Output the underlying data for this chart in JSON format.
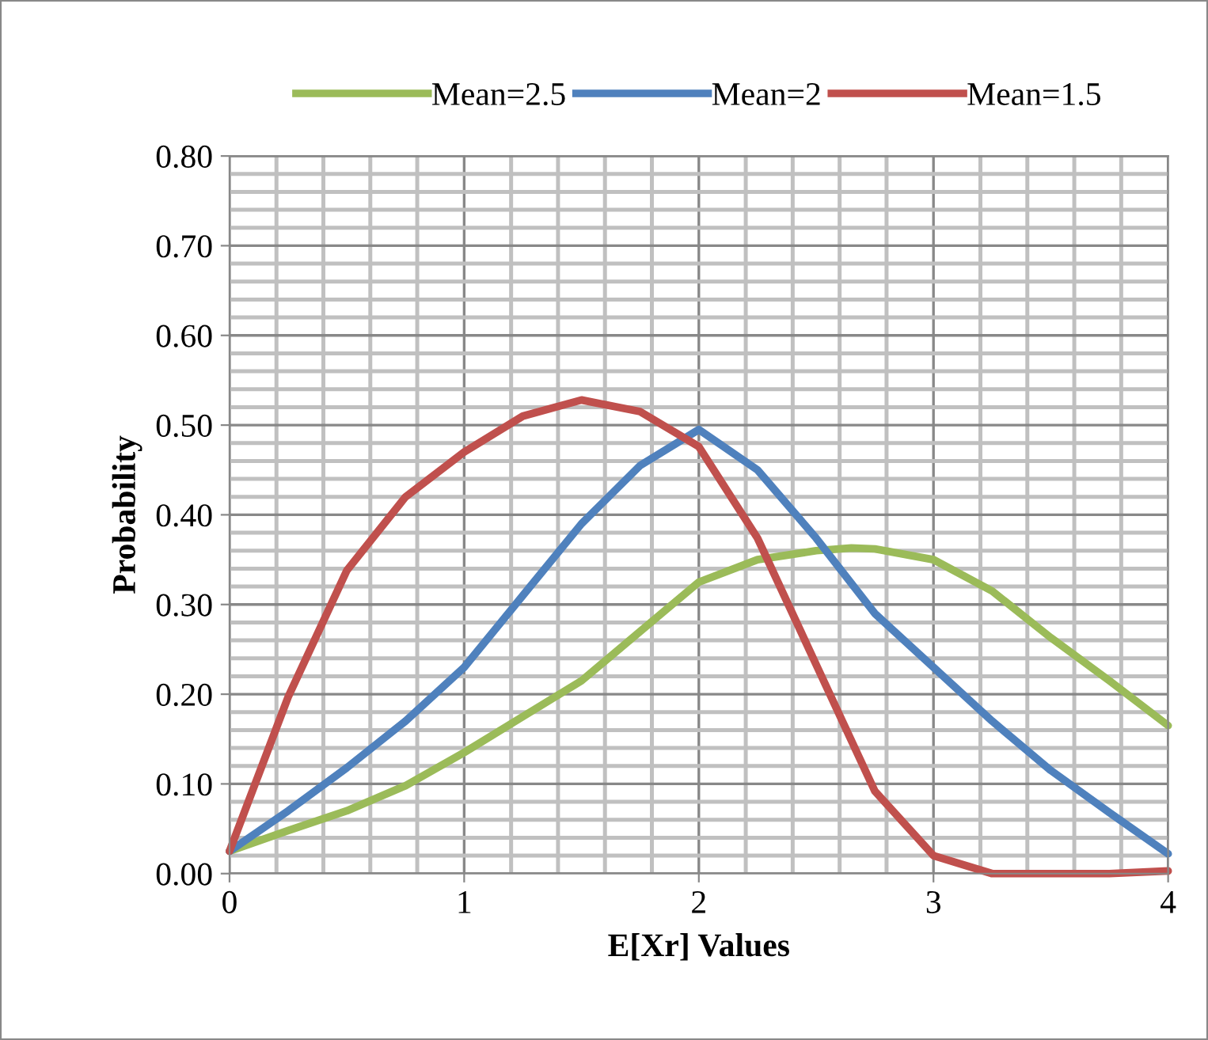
{
  "chart_data": {
    "type": "line",
    "xlabel": "E[Xr] Values",
    "ylabel": "Probability",
    "xlim": [
      0,
      4
    ],
    "ylim": [
      0,
      0.8
    ],
    "xticks": [
      {
        "value": 0,
        "label": "0"
      },
      {
        "value": 0.2,
        "label": null
      },
      {
        "value": 0.4,
        "label": null
      },
      {
        "value": 0.6,
        "label": null
      },
      {
        "value": 0.8,
        "label": null
      },
      {
        "value": 1,
        "label": "1"
      },
      {
        "value": 1.2,
        "label": null
      },
      {
        "value": 1.4,
        "label": null
      },
      {
        "value": 1.6,
        "label": null
      },
      {
        "value": 1.8,
        "label": null
      },
      {
        "value": 2,
        "label": "2"
      },
      {
        "value": 2.2,
        "label": null
      },
      {
        "value": 2.4,
        "label": null
      },
      {
        "value": 2.6,
        "label": null
      },
      {
        "value": 2.8,
        "label": null
      },
      {
        "value": 3,
        "label": "3"
      },
      {
        "value": 3.2,
        "label": null
      },
      {
        "value": 3.4,
        "label": null
      },
      {
        "value": 3.6,
        "label": null
      },
      {
        "value": 3.8,
        "label": null
      },
      {
        "value": 4,
        "label": "4"
      }
    ],
    "yticks": [
      {
        "value": 0,
        "label": "0.00"
      },
      {
        "value": 0.02,
        "label": null
      },
      {
        "value": 0.04,
        "label": null
      },
      {
        "value": 0.06,
        "label": null
      },
      {
        "value": 0.08,
        "label": null
      },
      {
        "value": 0.1,
        "label": "0.10"
      },
      {
        "value": 0.12,
        "label": null
      },
      {
        "value": 0.14,
        "label": null
      },
      {
        "value": 0.16,
        "label": null
      },
      {
        "value": 0.18,
        "label": null
      },
      {
        "value": 0.2,
        "label": "0.20"
      },
      {
        "value": 0.22,
        "label": null
      },
      {
        "value": 0.24,
        "label": null
      },
      {
        "value": 0.26,
        "label": null
      },
      {
        "value": 0.28,
        "label": null
      },
      {
        "value": 0.3,
        "label": "0.30"
      },
      {
        "value": 0.32,
        "label": null
      },
      {
        "value": 0.34,
        "label": null
      },
      {
        "value": 0.36,
        "label": null
      },
      {
        "value": 0.38,
        "label": null
      },
      {
        "value": 0.4,
        "label": "0.40"
      },
      {
        "value": 0.42,
        "label": null
      },
      {
        "value": 0.44,
        "label": null
      },
      {
        "value": 0.46,
        "label": null
      },
      {
        "value": 0.48,
        "label": null
      },
      {
        "value": 0.5,
        "label": "0.50"
      },
      {
        "value": 0.52,
        "label": null
      },
      {
        "value": 0.54,
        "label": null
      },
      {
        "value": 0.56,
        "label": null
      },
      {
        "value": 0.58,
        "label": null
      },
      {
        "value": 0.6,
        "label": "0.60"
      },
      {
        "value": 0.62,
        "label": null
      },
      {
        "value": 0.64,
        "label": null
      },
      {
        "value": 0.66,
        "label": null
      },
      {
        "value": 0.68,
        "label": null
      },
      {
        "value": 0.7,
        "label": "0.70"
      },
      {
        "value": 0.72,
        "label": null
      },
      {
        "value": 0.74,
        "label": null
      },
      {
        "value": 0.76,
        "label": null
      },
      {
        "value": 0.78,
        "label": null
      },
      {
        "value": 0.8,
        "label": "0.80"
      }
    ],
    "grid": true,
    "legend": "top",
    "marker": "none",
    "line_style": "solid",
    "series": [
      {
        "name": "Mean=2.5",
        "color": "#9bbb59",
        "x": [
          0,
          0.25,
          0.5,
          0.75,
          1,
          1.25,
          1.5,
          1.75,
          2,
          2.25,
          2.5,
          2.65,
          2.75,
          3,
          3.25,
          3.5,
          3.75,
          4
        ],
        "values": [
          0.025,
          0.048,
          0.07,
          0.098,
          0.135,
          0.175,
          0.215,
          0.27,
          0.325,
          0.35,
          0.36,
          0.363,
          0.362,
          0.35,
          0.315,
          0.263,
          0.215,
          0.165
        ]
      },
      {
        "name": "Mean=2",
        "color": "#4f81bd",
        "x": [
          0,
          0.25,
          0.5,
          0.75,
          1,
          1.25,
          1.5,
          1.75,
          2,
          2.25,
          2.5,
          2.75,
          3,
          3.25,
          3.5,
          3.75,
          4
        ],
        "values": [
          0.025,
          0.07,
          0.118,
          0.17,
          0.23,
          0.31,
          0.39,
          0.455,
          0.495,
          0.45,
          0.374,
          0.29,
          0.23,
          0.17,
          0.115,
          0.068,
          0.022
        ]
      },
      {
        "name": "Mean=1.5",
        "color": "#c0504d",
        "x": [
          0,
          0.25,
          0.5,
          0.75,
          1,
          1.25,
          1.5,
          1.75,
          2,
          2.25,
          2.5,
          2.75,
          3,
          3.25,
          3.5,
          3.75,
          4
        ],
        "values": [
          0.025,
          0.197,
          0.338,
          0.42,
          0.47,
          0.51,
          0.528,
          0.515,
          0.476,
          0.374,
          0.233,
          0.092,
          0.02,
          0.0,
          0.0,
          0.0,
          0.003
        ]
      }
    ]
  }
}
